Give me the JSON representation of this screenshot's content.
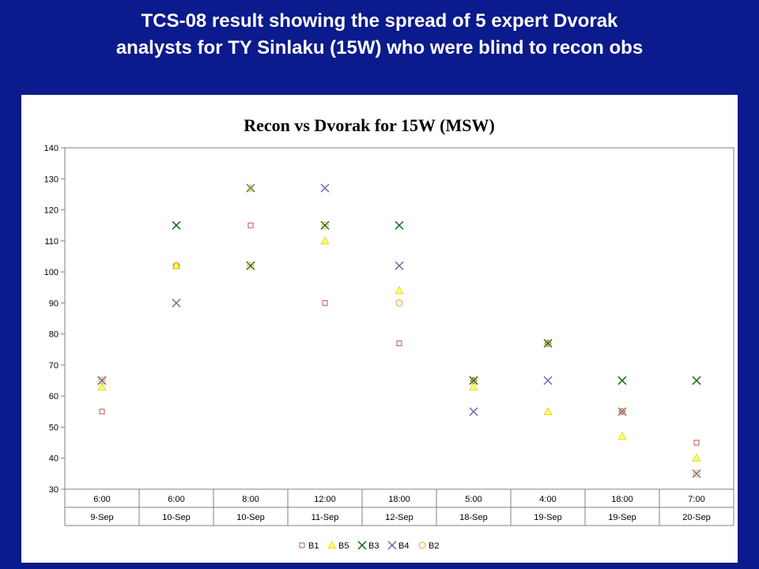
{
  "slide": {
    "title_line1": "TCS-08 result showing the spread of 5 expert Dvorak",
    "title_line2": "analysts for TY Sinlaku (15W) who were blind to recon obs"
  },
  "chart_data": {
    "type": "scatter",
    "title": "Recon vs Dvorak for 15W (MSW)",
    "xlabel": "",
    "ylabel": "",
    "ylim": [
      30,
      140
    ],
    "yticks": [
      30,
      40,
      50,
      60,
      70,
      80,
      90,
      100,
      110,
      120,
      130,
      140
    ],
    "grid": false,
    "legend_position": "bottom",
    "categories": [
      {
        "time": "6:00",
        "date": "9-Sep"
      },
      {
        "time": "6:00",
        "date": "10-Sep"
      },
      {
        "time": "8:00",
        "date": "10-Sep"
      },
      {
        "time": "12:00",
        "date": "11-Sep"
      },
      {
        "time": "18:00",
        "date": "12-Sep"
      },
      {
        "time": "5:00",
        "date": "18-Sep"
      },
      {
        "time": "4:00",
        "date": "19-Sep"
      },
      {
        "time": "18:00",
        "date": "19-Sep"
      },
      {
        "time": "7:00",
        "date": "20-Sep"
      }
    ],
    "series": [
      {
        "name": "B1",
        "marker": "square",
        "color": "#c0504d",
        "values": [
          55,
          102,
          115,
          90,
          77,
          65,
          77,
          55,
          45
        ]
      },
      {
        "name": "B5",
        "marker": "triangle",
        "color": "#ffff66",
        "values": [
          63,
          102,
          127,
          110,
          94,
          63,
          55,
          47,
          40
        ]
      },
      {
        "name": "B3",
        "marker": "x",
        "color": "#006400",
        "values": [
          65,
          115,
          102,
          115,
          115,
          65,
          77,
          65,
          65
        ]
      },
      {
        "name": "B4",
        "marker": "x",
        "color": "#6666a6",
        "values": [
          65,
          90,
          127,
          127,
          102,
          55,
          65,
          55,
          35
        ]
      },
      {
        "name": "B2",
        "marker": "circle",
        "color": "#f0a030",
        "values": [
          65,
          102,
          102,
          115,
          90,
          65,
          77,
          55,
          35
        ]
      }
    ]
  }
}
